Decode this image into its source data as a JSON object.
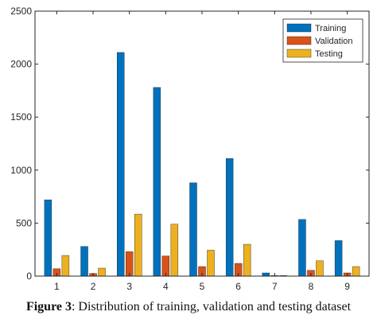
{
  "caption": {
    "label": "Figure 3",
    "text": ": Distribution of training, validation and testing dataset"
  },
  "chart_data": {
    "type": "bar",
    "categories": [
      "1",
      "2",
      "3",
      "4",
      "5",
      "6",
      "7",
      "8",
      "9"
    ],
    "series": [
      {
        "name": "Training",
        "color": "#0072BD",
        "values": [
          720,
          280,
          2110,
          1780,
          880,
          1110,
          30,
          535,
          335
        ]
      },
      {
        "name": "Validation",
        "color": "#D95319",
        "values": [
          70,
          25,
          230,
          190,
          90,
          120,
          5,
          55,
          30
        ]
      },
      {
        "name": "Testing",
        "color": "#EDB120",
        "values": [
          195,
          75,
          585,
          490,
          245,
          300,
          5,
          145,
          90
        ]
      }
    ],
    "ylim": [
      0,
      2500
    ],
    "yticks": [
      0,
      500,
      1000,
      1500,
      2000,
      2500
    ],
    "grid": false,
    "legend_position": "top-right"
  }
}
